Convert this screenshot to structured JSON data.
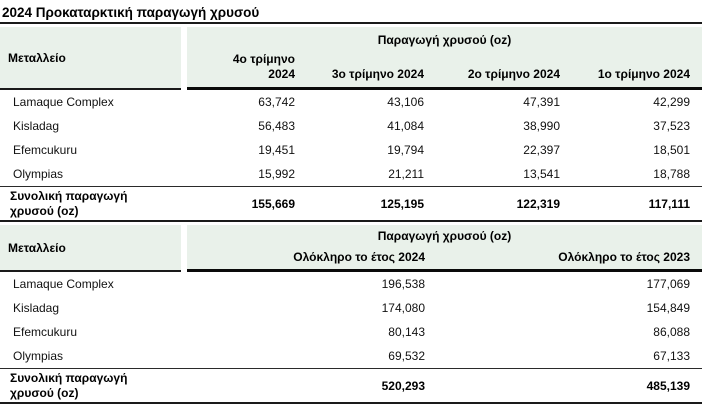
{
  "title": "2024 Προκαταρκτική παραγωγή χρυσού",
  "colors": {
    "header_bg": "#e9f1ea",
    "rule_dark": "#1a1a1a"
  },
  "table_quarterly": {
    "mine_header": "Μεταλλείο",
    "group_header": "Παραγωγή χρυσού (oz)",
    "columns": [
      "4ο τρίμηνο 2024",
      "3ο τρίμηνο 2024",
      "2ο τρίμηνο 2024",
      "1ο τρίμηνο 2024"
    ],
    "rows": [
      {
        "mine": "Lamaque Complex",
        "values": [
          "63,742",
          "43,106",
          "47,391",
          "42,299"
        ]
      },
      {
        "mine": "Kisladag",
        "values": [
          "56,483",
          "41,084",
          "38,990",
          "37,523"
        ]
      },
      {
        "mine": "Efemcukuru",
        "values": [
          "19,451",
          "19,794",
          "22,397",
          "18,501"
        ]
      },
      {
        "mine": "Olympias",
        "values": [
          "15,992",
          "21,211",
          "13,541",
          "18,788"
        ]
      }
    ],
    "total": {
      "label": "Συνολική παραγωγή χρυσού (oz)",
      "values": [
        "155,669",
        "125,195",
        "122,319",
        "117,111"
      ]
    }
  },
  "table_annual": {
    "mine_header": "Μεταλλείο",
    "group_header": "Παραγωγή χρυσού (oz)",
    "columns": [
      "Ολόκληρο το έτος 2024",
      "Ολόκληρο το έτος 2023"
    ],
    "rows": [
      {
        "mine": "Lamaque Complex",
        "values": [
          "196,538",
          "177,069"
        ]
      },
      {
        "mine": "Kisladag",
        "values": [
          "174,080",
          "154,849"
        ]
      },
      {
        "mine": "Efemcukuru",
        "values": [
          "80,143",
          "86,088"
        ]
      },
      {
        "mine": "Olympias",
        "values": [
          "69,532",
          "67,133"
        ]
      }
    ],
    "total": {
      "label": "Συνολική παραγωγή χρυσού (oz)",
      "values": [
        "520,293",
        "485,139"
      ]
    }
  }
}
